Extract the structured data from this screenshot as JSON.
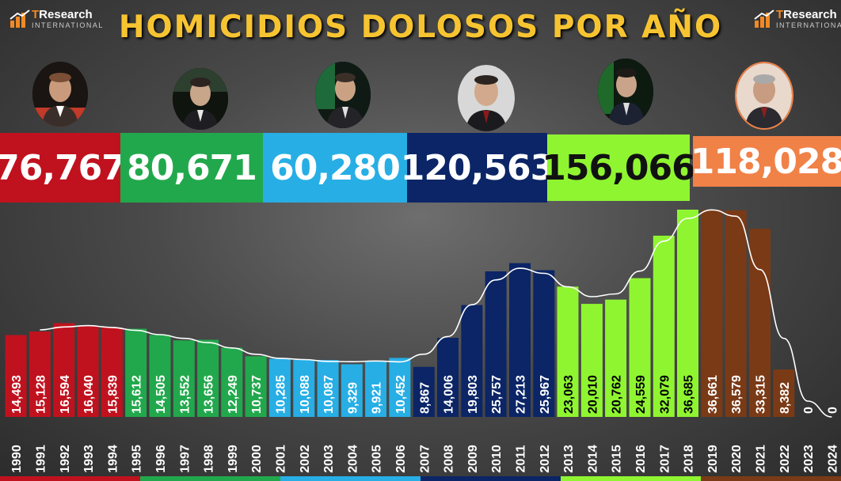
{
  "title": "HOMICIDIOS DOLOSOS POR AÑO",
  "logo": {
    "brand_t": "T",
    "brand_rest": "Research",
    "sub": "INTERNATIONAL"
  },
  "colors": {
    "salinas": "#c0121e",
    "zedillo": "#22a84c",
    "fox": "#27aee5",
    "calderon": "#0b2566",
    "pena": "#8ff531",
    "amlo": "#7a3a16",
    "amlo_total": "#f08147",
    "title": "#f7c431"
  },
  "totals": [
    {
      "value": "76,767",
      "bg": "#c0121e",
      "fg": "#ffffff"
    },
    {
      "value": "80,671",
      "bg": "#22a84c",
      "fg": "#ffffff"
    },
    {
      "value": "60,280",
      "bg": "#27aee5",
      "fg": "#ffffff"
    },
    {
      "value": "120,563",
      "bg": "#0b2566",
      "fg": "#ffffff"
    },
    {
      "value": "156,066",
      "bg": "#8ff531",
      "fg": "#111111"
    },
    {
      "value": "118,028",
      "bg": "#f08147",
      "fg": "#ffffff"
    }
  ],
  "chart_data": {
    "type": "bar",
    "title": "HOMICIDIOS DOLOSOS POR AÑO",
    "categories": [
      "1990",
      "1991",
      "1992",
      "1993",
      "1994",
      "1995",
      "1996",
      "1997",
      "1998",
      "1999",
      "2000",
      "2001",
      "2002",
      "2003",
      "2004",
      "2005",
      "2006",
      "2007",
      "2008",
      "2009",
      "2010",
      "2011",
      "2012",
      "2013",
      "2014",
      "2015",
      "2016",
      "2017",
      "2018",
      "2019",
      "2020",
      "2021",
      "2022",
      "2023",
      "2024"
    ],
    "values": [
      14493,
      15128,
      16594,
      16040,
      15839,
      15612,
      14505,
      13552,
      13656,
      12249,
      10737,
      10285,
      10088,
      10087,
      9329,
      9921,
      10452,
      8867,
      14006,
      19803,
      25757,
      27213,
      25967,
      23063,
      20010,
      20762,
      24559,
      32079,
      36685,
      36661,
      36579,
      33315,
      8382,
      0,
      0
    ],
    "labels": [
      "14,493",
      "15,128",
      "16,594",
      "16,040",
      "15,839",
      "15,612",
      "14,505",
      "13,552",
      "13,656",
      "12,249",
      "10,737",
      "10,285",
      "10,088",
      "10,087",
      "9,329",
      "9,921",
      "10,452",
      "8,867",
      "14,006",
      "19,803",
      "25,757",
      "27,213",
      "25,967",
      "23,063",
      "20,010",
      "20,762",
      "24,559",
      "32,079",
      "36,685",
      "36,661",
      "36,579",
      "33,315",
      "8,382",
      "0",
      "0"
    ],
    "bar_colors": [
      "#c0121e",
      "#c0121e",
      "#c0121e",
      "#c0121e",
      "#c0121e",
      "#22a84c",
      "#22a84c",
      "#22a84c",
      "#22a84c",
      "#22a84c",
      "#22a84c",
      "#27aee5",
      "#27aee5",
      "#27aee5",
      "#27aee5",
      "#27aee5",
      "#27aee5",
      "#0b2566",
      "#0b2566",
      "#0b2566",
      "#0b2566",
      "#0b2566",
      "#0b2566",
      "#8ff531",
      "#8ff531",
      "#8ff531",
      "#8ff531",
      "#8ff531",
      "#8ff531",
      "#7a3a16",
      "#7a3a16",
      "#7a3a16",
      "#7a3a16",
      "#7a3a16",
      "#7a3a16"
    ],
    "label_colors": [
      "#ffffff",
      "#ffffff",
      "#ffffff",
      "#ffffff",
      "#ffffff",
      "#ffffff",
      "#ffffff",
      "#ffffff",
      "#ffffff",
      "#ffffff",
      "#ffffff",
      "#ffffff",
      "#ffffff",
      "#ffffff",
      "#ffffff",
      "#ffffff",
      "#ffffff",
      "#ffffff",
      "#ffffff",
      "#ffffff",
      "#ffffff",
      "#ffffff",
      "#ffffff",
      "#000000",
      "#000000",
      "#000000",
      "#000000",
      "#000000",
      "#000000",
      "#ffffff",
      "#ffffff",
      "#ffffff",
      "#ffffff",
      "#ffffff",
      "#ffffff"
    ],
    "trend_line": true,
    "ylim": [
      0,
      37500
    ],
    "grid": false,
    "legend": "none"
  }
}
